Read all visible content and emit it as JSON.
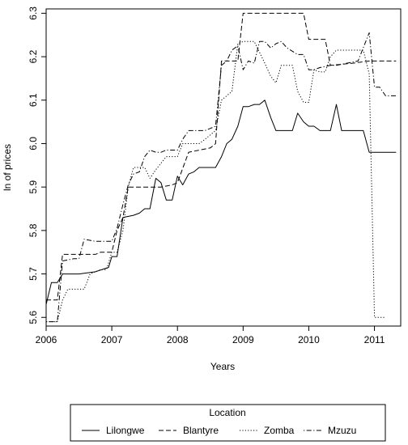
{
  "chart_data": {
    "type": "line",
    "xlabel": "Years",
    "ylabel": "ln of prices",
    "xlim": [
      2006,
      2011.4
    ],
    "ylim": [
      5.58,
      6.31
    ],
    "x_ticks": [
      2006,
      2007,
      2008,
      2009,
      2010,
      2011
    ],
    "y_ticks": [
      5.6,
      5.7,
      5.8,
      5.9,
      6.0,
      6.1,
      6.2,
      6.3
    ],
    "grid": false,
    "legend": {
      "title": "Location",
      "placement": "bottom",
      "entries": [
        "Lilongwe",
        "Blantyre",
        "Zomba",
        "Mzuzu"
      ]
    },
    "series": [
      {
        "name": "Lilongwe",
        "line_style": "solid",
        "values": [
          [
            2006.0,
            5.63
          ],
          [
            2006.08,
            5.68
          ],
          [
            2006.17,
            5.68
          ],
          [
            2006.25,
            5.7
          ],
          [
            2006.5,
            5.7
          ],
          [
            2006.75,
            5.705
          ],
          [
            2006.85,
            5.71
          ],
          [
            2006.95,
            5.715
          ],
          [
            2007.0,
            5.74
          ],
          [
            2007.08,
            5.74
          ],
          [
            2007.17,
            5.83
          ],
          [
            2007.33,
            5.835
          ],
          [
            2007.42,
            5.84
          ],
          [
            2007.5,
            5.85
          ],
          [
            2007.58,
            5.85
          ],
          [
            2007.67,
            5.92
          ],
          [
            2007.75,
            5.91
          ],
          [
            2007.83,
            5.87
          ],
          [
            2007.92,
            5.87
          ],
          [
            2008.0,
            5.925
          ],
          [
            2008.08,
            5.905
          ],
          [
            2008.17,
            5.93
          ],
          [
            2008.25,
            5.935
          ],
          [
            2008.33,
            5.945
          ],
          [
            2008.58,
            5.945
          ],
          [
            2008.67,
            5.97
          ],
          [
            2008.75,
            6.0
          ],
          [
            2008.83,
            6.01
          ],
          [
            2008.92,
            6.04
          ],
          [
            2009.0,
            6.085
          ],
          [
            2009.08,
            6.085
          ],
          [
            2009.17,
            6.09
          ],
          [
            2009.25,
            6.09
          ],
          [
            2009.33,
            6.1
          ],
          [
            2009.42,
            6.06
          ],
          [
            2009.5,
            6.03
          ],
          [
            2009.75,
            6.03
          ],
          [
            2009.83,
            6.07
          ],
          [
            2009.92,
            6.05
          ],
          [
            2010.0,
            6.04
          ],
          [
            2010.08,
            6.04
          ],
          [
            2010.17,
            6.03
          ],
          [
            2010.33,
            6.03
          ],
          [
            2010.42,
            6.09
          ],
          [
            2010.5,
            6.03
          ],
          [
            2010.83,
            6.03
          ],
          [
            2010.92,
            5.98
          ],
          [
            2011.33,
            5.98
          ]
        ]
      },
      {
        "name": "Blantyre",
        "line_style": "dashed",
        "values": [
          [
            2006.0,
            5.64
          ],
          [
            2006.08,
            5.64
          ],
          [
            2006.17,
            5.64
          ],
          [
            2006.25,
            5.745
          ],
          [
            2006.5,
            5.745
          ],
          [
            2006.75,
            5.745
          ],
          [
            2006.83,
            5.75
          ],
          [
            2007.0,
            5.75
          ],
          [
            2007.08,
            5.8
          ],
          [
            2007.17,
            5.83
          ],
          [
            2007.25,
            5.9
          ],
          [
            2007.5,
            5.9
          ],
          [
            2007.75,
            5.9
          ],
          [
            2007.92,
            5.905
          ],
          [
            2008.0,
            5.91
          ],
          [
            2008.17,
            5.98
          ],
          [
            2008.5,
            5.99
          ],
          [
            2008.58,
            6.0
          ],
          [
            2008.67,
            6.19
          ],
          [
            2008.75,
            6.19
          ],
          [
            2008.92,
            6.19
          ],
          [
            2009.0,
            6.3
          ],
          [
            2009.25,
            6.3
          ],
          [
            2009.5,
            6.3
          ],
          [
            2009.92,
            6.3
          ],
          [
            2010.0,
            6.24
          ],
          [
            2010.25,
            6.24
          ],
          [
            2010.33,
            6.18
          ],
          [
            2010.67,
            6.185
          ],
          [
            2010.92,
            6.19
          ],
          [
            2011.33,
            6.19
          ]
        ]
      },
      {
        "name": "Zomba",
        "line_style": "dotted",
        "values": [
          [
            2006.0,
            5.59
          ],
          [
            2006.08,
            5.59
          ],
          [
            2006.17,
            5.59
          ],
          [
            2006.25,
            5.64
          ],
          [
            2006.33,
            5.665
          ],
          [
            2006.5,
            5.665
          ],
          [
            2006.58,
            5.665
          ],
          [
            2006.67,
            5.7
          ],
          [
            2006.83,
            5.71
          ],
          [
            2006.92,
            5.71
          ],
          [
            2007.0,
            5.75
          ],
          [
            2007.08,
            5.75
          ],
          [
            2007.17,
            5.8
          ],
          [
            2007.25,
            5.9
          ],
          [
            2007.33,
            5.945
          ],
          [
            2007.5,
            5.945
          ],
          [
            2007.58,
            5.92
          ],
          [
            2007.67,
            5.94
          ],
          [
            2007.83,
            5.97
          ],
          [
            2008.0,
            5.97
          ],
          [
            2008.08,
            6.0
          ],
          [
            2008.25,
            6.0
          ],
          [
            2008.33,
            6.0
          ],
          [
            2008.42,
            6.01
          ],
          [
            2008.58,
            6.03
          ],
          [
            2008.67,
            6.1
          ],
          [
            2008.75,
            6.11
          ],
          [
            2008.83,
            6.12
          ],
          [
            2008.92,
            6.23
          ],
          [
            2009.0,
            6.235
          ],
          [
            2009.17,
            6.235
          ],
          [
            2009.25,
            6.21
          ],
          [
            2009.33,
            6.185
          ],
          [
            2009.42,
            6.155
          ],
          [
            2009.5,
            6.14
          ],
          [
            2009.58,
            6.18
          ],
          [
            2009.67,
            6.18
          ],
          [
            2009.75,
            6.18
          ],
          [
            2009.83,
            6.12
          ],
          [
            2009.92,
            6.095
          ],
          [
            2010.0,
            6.095
          ],
          [
            2010.08,
            6.17
          ],
          [
            2010.17,
            6.165
          ],
          [
            2010.25,
            6.165
          ],
          [
            2010.33,
            6.2
          ],
          [
            2010.42,
            6.215
          ],
          [
            2010.75,
            6.215
          ],
          [
            2010.83,
            6.215
          ],
          [
            2010.92,
            6.16
          ],
          [
            2011.0,
            5.6
          ],
          [
            2011.08,
            5.6
          ],
          [
            2011.17,
            5.6
          ]
        ]
      },
      {
        "name": "Mzuzu",
        "line_style": "dotdash",
        "values": [
          [
            2006.0,
            5.59
          ],
          [
            2006.08,
            5.59
          ],
          [
            2006.17,
            5.59
          ],
          [
            2006.25,
            5.73
          ],
          [
            2006.42,
            5.735
          ],
          [
            2006.5,
            5.735
          ],
          [
            2006.58,
            5.78
          ],
          [
            2006.75,
            5.775
          ],
          [
            2006.92,
            5.775
          ],
          [
            2007.0,
            5.775
          ],
          [
            2007.08,
            5.805
          ],
          [
            2007.17,
            5.86
          ],
          [
            2007.25,
            5.905
          ],
          [
            2007.33,
            5.93
          ],
          [
            2007.42,
            5.935
          ],
          [
            2007.5,
            5.97
          ],
          [
            2007.58,
            5.985
          ],
          [
            2007.67,
            5.98
          ],
          [
            2007.75,
            5.98
          ],
          [
            2007.83,
            5.985
          ],
          [
            2008.0,
            5.985
          ],
          [
            2008.08,
            6.01
          ],
          [
            2008.17,
            6.03
          ],
          [
            2008.42,
            6.03
          ],
          [
            2008.5,
            6.035
          ],
          [
            2008.58,
            6.04
          ],
          [
            2008.67,
            6.18
          ],
          [
            2008.75,
            6.19
          ],
          [
            2008.83,
            6.215
          ],
          [
            2008.92,
            6.225
          ],
          [
            2009.0,
            6.17
          ],
          [
            2009.08,
            6.19
          ],
          [
            2009.17,
            6.185
          ],
          [
            2009.25,
            6.235
          ],
          [
            2009.33,
            6.235
          ],
          [
            2009.42,
            6.22
          ],
          [
            2009.5,
            6.23
          ],
          [
            2009.58,
            6.235
          ],
          [
            2009.67,
            6.22
          ],
          [
            2009.83,
            6.205
          ],
          [
            2009.92,
            6.205
          ],
          [
            2010.0,
            6.17
          ],
          [
            2010.08,
            6.17
          ],
          [
            2010.17,
            6.175
          ],
          [
            2010.33,
            6.18
          ],
          [
            2010.42,
            6.18
          ],
          [
            2010.75,
            6.19
          ],
          [
            2010.92,
            6.255
          ],
          [
            2011.0,
            6.13
          ],
          [
            2011.08,
            6.13
          ],
          [
            2011.17,
            6.11
          ],
          [
            2011.33,
            6.11
          ]
        ]
      }
    ]
  }
}
